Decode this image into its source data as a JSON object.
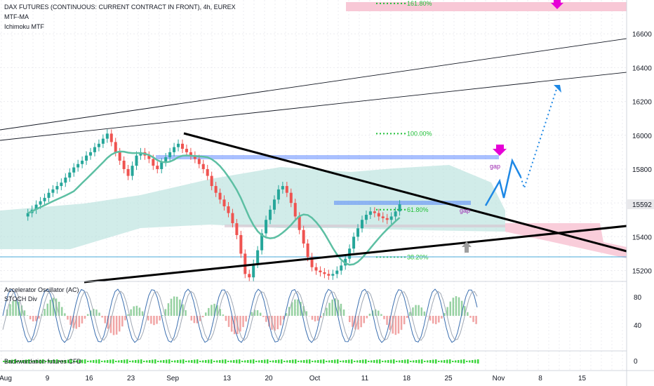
{
  "header": {
    "title": "DAX FUTURES (CONTINUOUS: CURRENT CONTRACT IN FRONT), 4h, EUREX",
    "indicator1": "MTF-MA",
    "indicator2": "Ichimoku MTF"
  },
  "panes": {
    "osc_title": "Accelerator Oscillator (AC)",
    "osc_sub": "STOCH Div",
    "bottom_title": "Backwardation futures CFD"
  },
  "colors": {
    "up": "#26a69a",
    "down": "#ef5350",
    "ma": "#5dbfa3",
    "cloud": "#b9e2dd",
    "cloud_red": "#f8c8d6",
    "zone": "#2962ff",
    "projection": "#1e88e5",
    "arrow": "#e600d6",
    "fib": "#1fbf36",
    "price_tag": "#e9e9ec"
  },
  "chart_data": {
    "type": "candlestick",
    "title": "DAX FUTURES (CONTINUOUS: CURRENT CONTRACT IN FRONT), 4h, EUREX",
    "ylim": [
      15140,
      16800
    ],
    "y_ticks": [
      15200,
      15400,
      15600,
      15800,
      16000,
      16200,
      16400,
      16600
    ],
    "last_price": "15592",
    "x_labels": [
      "Aug",
      "9",
      "16",
      "23",
      "Sep",
      "13",
      "20",
      "Oct",
      "11",
      "18",
      "25",
      "Nov",
      "8",
      "15"
    ],
    "x_label_slots": [
      0,
      10,
      20,
      30,
      40,
      53,
      63,
      74,
      86,
      96,
      106,
      118,
      128,
      138
    ],
    "closes": [
      15540,
      15560,
      15590,
      15610,
      15630,
      15660,
      15680,
      15700,
      15720,
      15750,
      15780,
      15810,
      15830,
      15850,
      15880,
      15900,
      15930,
      15950,
      15980,
      16010,
      15960,
      15900,
      15850,
      15800,
      15760,
      15820,
      15880,
      15900,
      15880,
      15860,
      15820,
      15800,
      15840,
      15870,
      15900,
      15930,
      15950,
      15920,
      15900,
      15880,
      15860,
      15830,
      15800,
      15760,
      15700,
      15660,
      15620,
      15580,
      15540,
      15480,
      15410,
      15300,
      15180,
      15160,
      15240,
      15320,
      15420,
      15500,
      15560,
      15620,
      15680,
      15700,
      15660,
      15600,
      15520,
      15440,
      15360,
      15280,
      15220,
      15200,
      15190,
      15180,
      15170,
      15180,
      15200,
      15230,
      15270,
      15330,
      15400,
      15450,
      15500,
      15530,
      15550,
      15540,
      15520,
      15510,
      15500,
      15520,
      15550,
      15592
    ],
    "fib_levels": [
      {
        "label": "161.80%",
        "value": 16780
      },
      {
        "label": "100.00%",
        "value": 16010
      },
      {
        "label": "61.80%",
        "value": 15560
      },
      {
        "label": "38.20%",
        "value": 15280
      }
    ],
    "annotations": [
      "gap",
      "gap"
    ],
    "osc_ticks": [
      "80",
      "40",
      "0"
    ]
  }
}
